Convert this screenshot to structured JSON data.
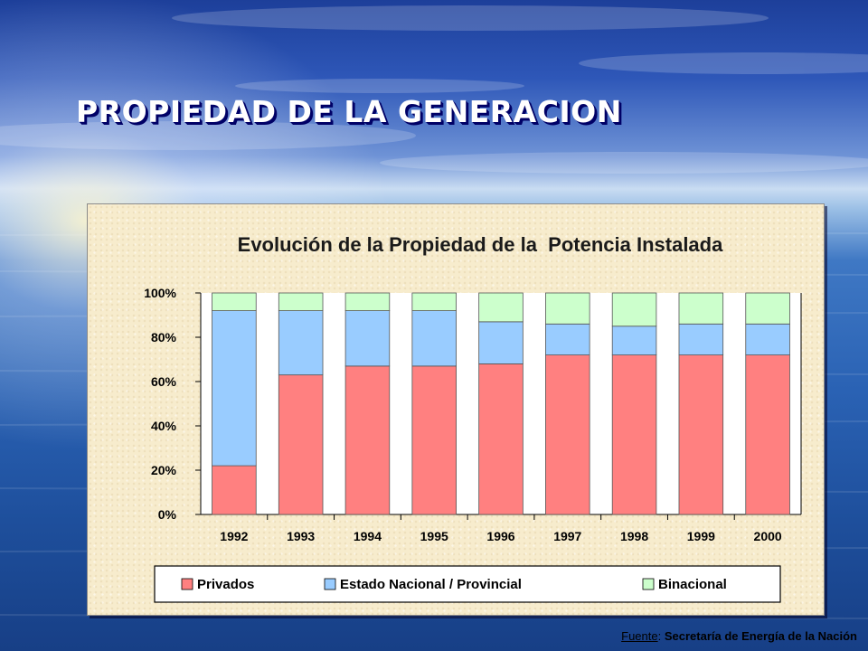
{
  "slide": {
    "title": "PROPIEDAD DE LA GENERACION",
    "source_label": "Fuente",
    "source_separator": ": ",
    "source_text": "Secretaría de Energía de la Nación"
  },
  "colors": {
    "privados": "#ff8080",
    "estado": "#99ccff",
    "binacional": "#ccffcc",
    "title_text": "#ffffff",
    "panel": "#f7eccd"
  },
  "chart_data": {
    "type": "bar",
    "stacked": true,
    "normalized": true,
    "title": "Evolución de la Propiedad de la  Potencia Instalada",
    "xlabel": "",
    "ylabel": "",
    "ylim": [
      0,
      100
    ],
    "yticks": [
      "0%",
      "20%",
      "40%",
      "60%",
      "80%",
      "100%"
    ],
    "grid": false,
    "legend_position": "bottom",
    "categories": [
      "1992",
      "1993",
      "1994",
      "1995",
      "1996",
      "1997",
      "1998",
      "1999",
      "2000"
    ],
    "series": [
      {
        "name": "Privados",
        "color": "#ff8080",
        "values": [
          22,
          63,
          67,
          67,
          68,
          72,
          72,
          72,
          72
        ]
      },
      {
        "name": "Estado Nacional / Provincial",
        "color": "#99ccff",
        "values": [
          70,
          29,
          25,
          25,
          19,
          14,
          13,
          14,
          14
        ]
      },
      {
        "name": "Binacional",
        "color": "#ccffcc",
        "values": [
          8,
          8,
          8,
          8,
          13,
          14,
          15,
          14,
          14
        ]
      }
    ]
  }
}
